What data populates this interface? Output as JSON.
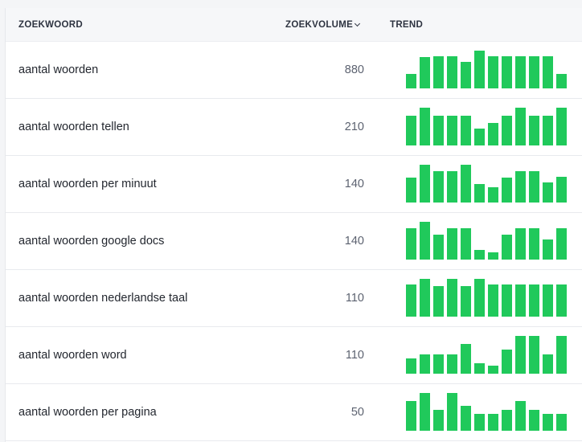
{
  "header": {
    "keyword": "ZOEKWOORD",
    "volume": "ZOEKVOLUME",
    "trend": "TREND",
    "sort_icon": "chevron-down-icon"
  },
  "colors": {
    "bar": "#20c95b",
    "header_bg": "#f6f7f9"
  },
  "rows": [
    {
      "keyword": "aantal woorden",
      "volume": "880",
      "trend": [
        0.38,
        0.82,
        0.85,
        0.85,
        0.71,
        1.0,
        0.85,
        0.85,
        0.85,
        0.85,
        0.85,
        0.38
      ]
    },
    {
      "keyword": "aantal woorden tellen",
      "volume": "210",
      "trend": [
        0.79,
        1.0,
        0.79,
        0.79,
        0.79,
        0.44,
        0.6,
        0.79,
        1.0,
        0.79,
        0.79,
        1.0
      ]
    },
    {
      "keyword": "aantal woorden per minuut",
      "volume": "140",
      "trend": [
        0.66,
        1.0,
        0.83,
        0.83,
        1.0,
        0.49,
        0.41,
        0.66,
        0.83,
        0.83,
        0.53,
        0.69
      ]
    },
    {
      "keyword": "aantal woorden google docs",
      "volume": "140",
      "trend": [
        0.82,
        1.0,
        0.66,
        0.82,
        0.82,
        0.25,
        0.2,
        0.66,
        0.82,
        0.82,
        0.53,
        0.82
      ]
    },
    {
      "keyword": "aantal woorden nederlandse taal",
      "volume": "110",
      "trend": [
        0.86,
        1.0,
        0.81,
        1.0,
        0.81,
        1.0,
        0.86,
        0.86,
        0.86,
        0.86,
        0.86,
        0.86
      ]
    },
    {
      "keyword": "aantal woorden word",
      "volume": "110",
      "trend": [
        0.4,
        0.51,
        0.51,
        0.51,
        0.79,
        0.28,
        0.21,
        0.63,
        1.0,
        1.0,
        0.51,
        1.0
      ]
    },
    {
      "keyword": "aantal woorden per pagina",
      "volume": "50",
      "trend": [
        0.78,
        1.0,
        0.56,
        1.0,
        0.67,
        0.44,
        0.44,
        0.56,
        0.78,
        0.56,
        0.44,
        0.44
      ]
    }
  ]
}
